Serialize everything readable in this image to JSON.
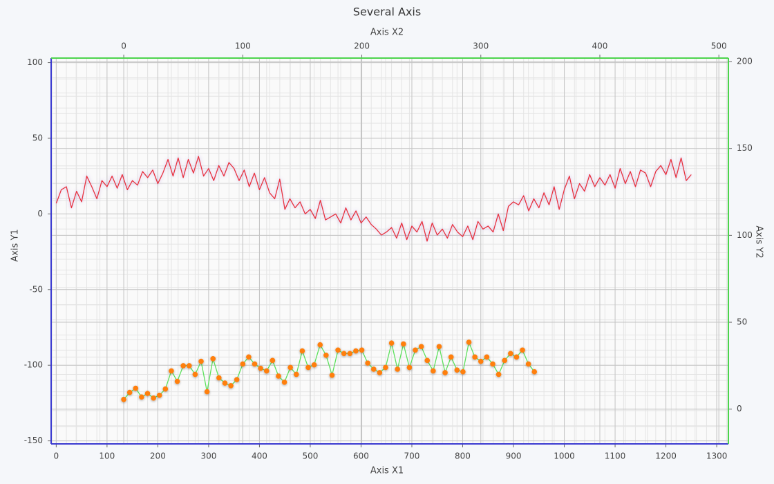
{
  "chart_data": {
    "type": "line",
    "title": "Several Axis",
    "xlabel": "Axis X1",
    "ylabel": "Axis Y1",
    "x2label": "Axis X2",
    "y2label": "Axis Y2",
    "xlim": [
      -10,
      1323
    ],
    "ylim": [
      -152,
      103
    ],
    "x2lim": [
      -61,
      508
    ],
    "y2lim": [
      -20,
      202
    ],
    "xticks": [
      0,
      100,
      200,
      300,
      400,
      500,
      600,
      700,
      800,
      900,
      1000,
      1100,
      1200,
      1300
    ],
    "yticks": [
      -150,
      -100,
      -50,
      0,
      50,
      100
    ],
    "x2ticks": [
      0,
      100,
      200,
      300,
      400,
      500
    ],
    "y2ticks": [
      0,
      50,
      100,
      150,
      200
    ],
    "grid": true,
    "x1_axis_color": "#3a3ad0",
    "x2_axis_color": "#4cd44c",
    "series": [
      {
        "color": "#e8303a",
        "x": [
          0,
          10,
          20,
          30,
          40,
          50,
          60,
          70,
          80,
          90,
          100,
          110,
          120,
          130,
          140,
          150,
          160,
          170,
          180,
          190,
          200,
          210,
          220,
          230,
          240,
          250,
          260,
          270,
          280,
          290,
          300,
          310,
          320,
          330,
          340,
          350,
          360,
          370,
          380,
          390,
          400,
          410,
          420,
          430,
          440,
          450,
          460,
          470,
          480,
          490,
          500,
          510,
          520,
          530,
          540,
          550,
          560,
          570,
          580,
          590,
          600,
          610,
          620,
          630,
          640,
          650,
          660,
          670,
          680,
          690,
          700,
          710,
          720,
          730,
          740,
          750,
          760,
          770,
          780,
          790,
          800,
          810,
          820,
          830,
          840,
          850,
          860,
          870,
          880,
          890,
          900,
          910,
          920,
          930,
          940,
          950,
          960,
          970,
          980,
          990,
          1000,
          1010,
          1020,
          1030,
          1040,
          1050,
          1060,
          1070,
          1080,
          1090,
          1100,
          1110,
          1120,
          1130,
          1140,
          1150,
          1160,
          1170,
          1180,
          1190,
          1200,
          1210,
          1220,
          1230,
          1240,
          1250
        ],
        "values": [
          7,
          16,
          18,
          4,
          15,
          8,
          25,
          18,
          10,
          22,
          18,
          25,
          17,
          26,
          16,
          22,
          19,
          28,
          24,
          29,
          20,
          27,
          36,
          25,
          37,
          24,
          36,
          27,
          38,
          25,
          30,
          22,
          32,
          25,
          34,
          30,
          22,
          29,
          18,
          27,
          16,
          24,
          14,
          10,
          23,
          3,
          10,
          4,
          8,
          0,
          3,
          -3,
          9,
          -4,
          -2,
          0,
          -6,
          4,
          -4,
          2,
          -6,
          -2,
          -7,
          -10,
          -14,
          -12,
          -9,
          -16,
          -6,
          -17,
          -8,
          -12,
          -5,
          -18,
          -6,
          -14,
          -10,
          -16,
          -7,
          -12,
          -15,
          -8,
          -17,
          -5,
          -10,
          -8,
          -12,
          0,
          -11,
          5,
          8,
          6,
          12,
          2,
          10,
          4,
          14,
          6,
          18,
          3,
          16,
          25,
          10,
          20,
          15,
          26,
          18,
          24,
          19,
          26,
          17,
          30,
          20,
          28,
          18,
          29,
          27,
          18,
          28,
          32,
          26,
          36,
          24,
          37,
          22,
          26
        ]
      },
      {
        "color": "#5de05d",
        "marker_color": "#ff7f0e",
        "axis": "y2",
        "xaxis": "x2",
        "x": [
          0,
          5,
          10,
          15,
          20,
          25,
          30,
          35,
          40,
          45,
          50,
          55,
          60,
          65,
          70,
          75,
          80,
          85,
          90,
          95,
          100,
          105,
          110,
          115,
          120,
          125,
          130,
          135,
          140,
          145,
          150,
          155,
          160,
          165,
          170,
          175,
          180,
          185,
          190,
          195,
          200,
          205,
          210,
          215,
          220,
          225,
          230,
          235,
          240,
          245,
          250,
          255,
          260,
          265,
          270,
          275,
          280,
          285,
          290,
          295,
          300,
          305,
          310,
          315,
          320,
          325,
          330,
          335,
          340,
          345
        ],
        "values": [
          5.6,
          9.6,
          12,
          7,
          9,
          6.4,
          8,
          11.6,
          22,
          16,
          25,
          25,
          20,
          27.5,
          10,
          29,
          18,
          15,
          13.5,
          17,
          26,
          30,
          26,
          23.5,
          22,
          28,
          19,
          15.5,
          24,
          20,
          33.5,
          24,
          25.5,
          37,
          31,
          19.5,
          34,
          32,
          32,
          33.5,
          34,
          26.5,
          23,
          21,
          24,
          38,
          23,
          37.5,
          24,
          34,
          36,
          28,
          22,
          36,
          21,
          30,
          22.5,
          21.5,
          38.5,
          30,
          27.5,
          30,
          26,
          20,
          28,
          32,
          30,
          34,
          26,
          21.5
        ]
      }
    ]
  }
}
